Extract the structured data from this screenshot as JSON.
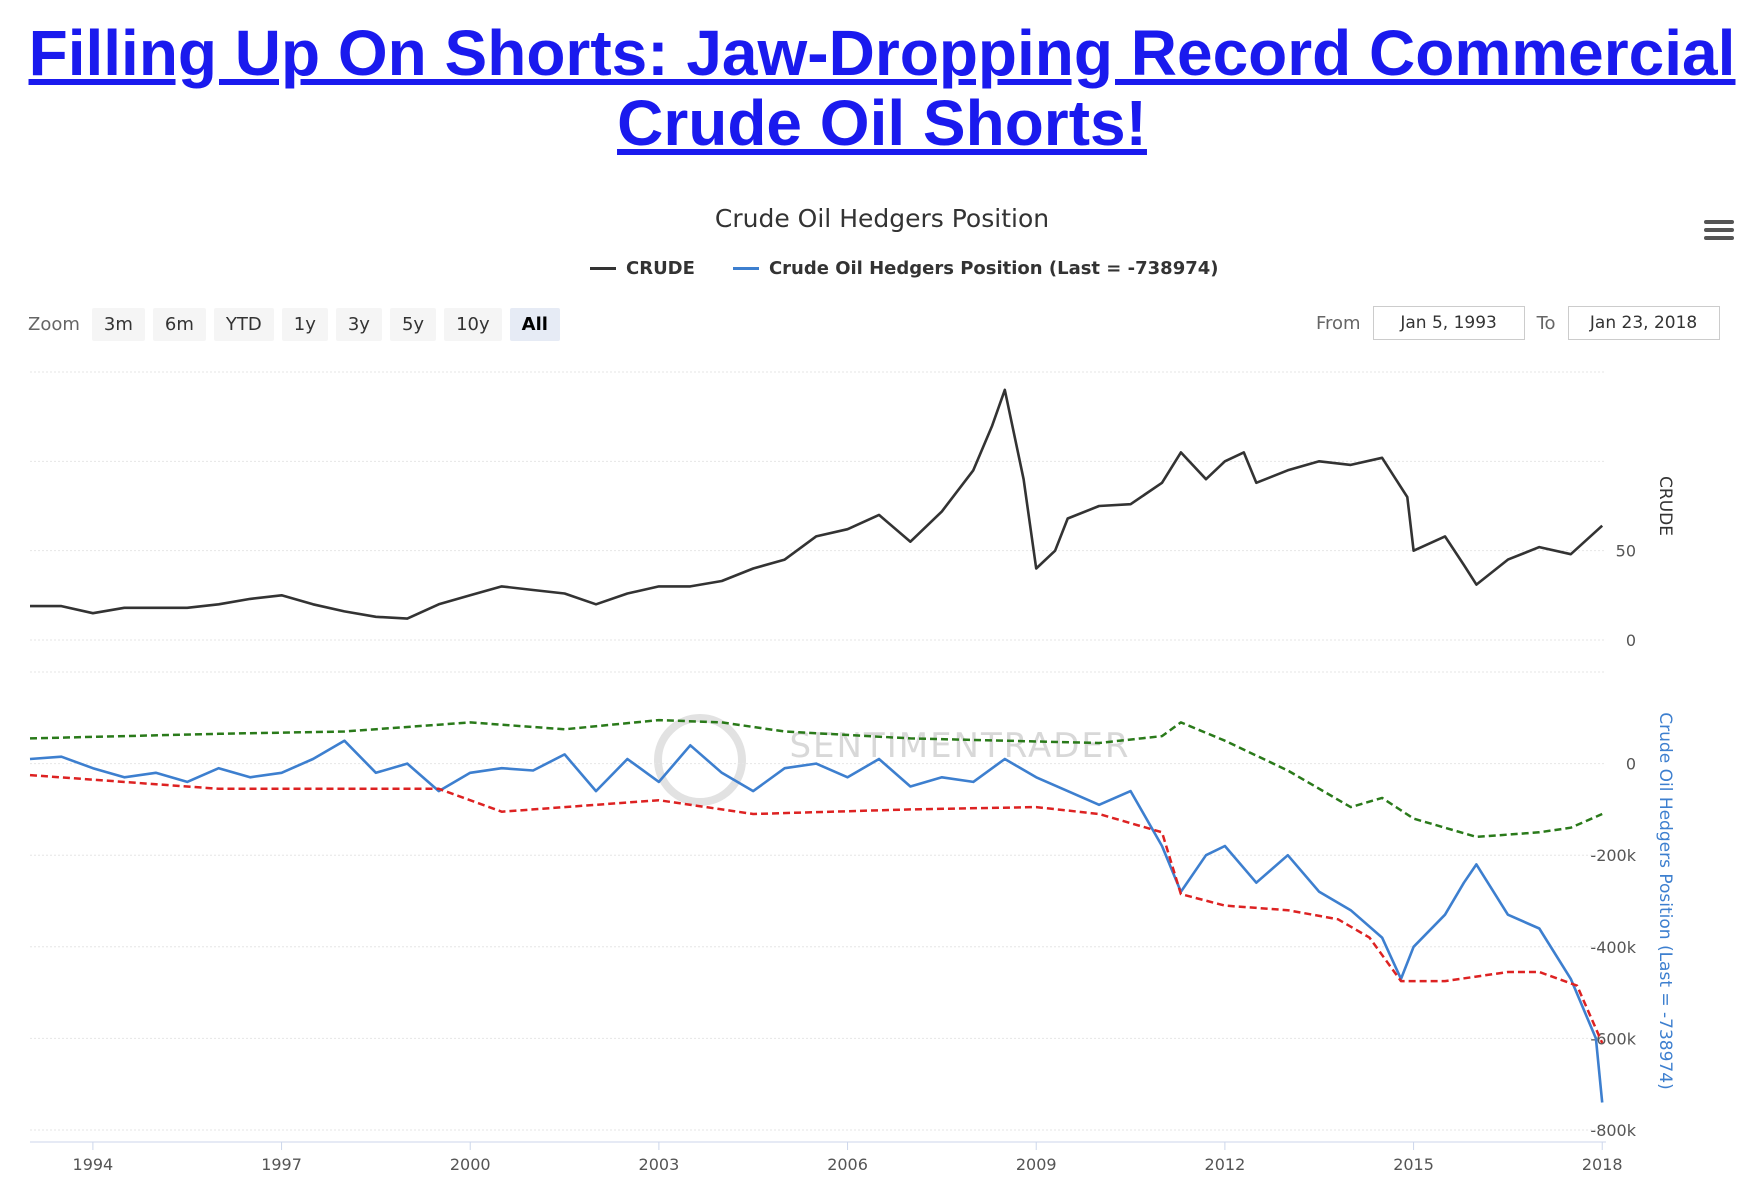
{
  "headline": "Filling Up On Shorts: Jaw-Dropping Record Commercial Crude Oil Shorts!",
  "toolbar": {
    "zoom_label": "Zoom",
    "zoom_buttons": [
      "3m",
      "6m",
      "YTD",
      "1y",
      "3y",
      "5y",
      "10y",
      "All"
    ],
    "active_zoom": "All",
    "from_label": "From",
    "from_value": "Jan 5, 1993",
    "to_label": "To",
    "to_value": "Jan 23, 2018"
  },
  "watermark": "SENTIMENTRADER",
  "colors": {
    "crude": "#333333",
    "hedgers": "#3d7fcf",
    "upper_band": "#2a7a1a",
    "lower_band": "#dd2222"
  },
  "chart_data": {
    "type": "line",
    "title": "Crude Oil Hedgers Position",
    "legend": [
      "CRUDE",
      "Crude Oil Hedgers Position (Last = -738974)"
    ],
    "x_ticks": [
      "1994",
      "1997",
      "2000",
      "2003",
      "2006",
      "2009",
      "2012",
      "2015",
      "2018"
    ],
    "xlim": [
      1993.0,
      2018.06
    ],
    "panels": [
      {
        "name": "CRUDE",
        "ylabel": "CRUDE",
        "ylim": [
          0,
          150
        ],
        "yticks": [
          0,
          50
        ],
        "series": [
          {
            "name": "CRUDE",
            "x": [
              1993.0,
              1993.5,
              1994.0,
              1994.5,
              1995.0,
              1995.5,
              1996.0,
              1996.5,
              1997.0,
              1997.5,
              1998.0,
              1998.5,
              1999.0,
              1999.5,
              2000.0,
              2000.5,
              2001.0,
              2001.5,
              2002.0,
              2002.5,
              2003.0,
              2003.5,
              2004.0,
              2004.5,
              2005.0,
              2005.5,
              2006.0,
              2006.5,
              2007.0,
              2007.5,
              2008.0,
              2008.3,
              2008.5,
              2008.8,
              2009.0,
              2009.3,
              2009.5,
              2010.0,
              2010.5,
              2011.0,
              2011.3,
              2011.7,
              2012.0,
              2012.3,
              2012.5,
              2013.0,
              2013.5,
              2014.0,
              2014.5,
              2014.9,
              2015.0,
              2015.5,
              2015.8,
              2016.0,
              2016.5,
              2017.0,
              2017.5,
              2018.0
            ],
            "values": [
              19,
              19,
              15,
              18,
              18,
              18,
              20,
              23,
              25,
              20,
              16,
              13,
              12,
              20,
              25,
              30,
              28,
              26,
              20,
              26,
              30,
              30,
              33,
              40,
              45,
              58,
              62,
              70,
              55,
              72,
              95,
              120,
              140,
              90,
              40,
              50,
              68,
              75,
              76,
              88,
              105,
              90,
              100,
              105,
              88,
              95,
              100,
              98,
              102,
              80,
              50,
              58,
              42,
              31,
              45,
              52,
              48,
              64
            ]
          }
        ]
      },
      {
        "name": "Crude Oil Hedgers Position",
        "ylabel": "Crude Oil Hedgers Position (Last = -738974)",
        "ylim": [
          -800000,
          200000
        ],
        "yticks": [
          0,
          -200000,
          -400000,
          -600000,
          -800000
        ],
        "ytick_labels": [
          "0",
          "-200k",
          "-400k",
          "-600k",
          "-800k"
        ],
        "last": -738974,
        "series": [
          {
            "name": "Crude Oil Hedgers Position",
            "x": [
              1993.0,
              1993.5,
              1994.0,
              1994.5,
              1995.0,
              1995.5,
              1996.0,
              1996.5,
              1997.0,
              1997.5,
              1998.0,
              1998.5,
              1999.0,
              1999.5,
              2000.0,
              2000.5,
              2001.0,
              2001.5,
              2002.0,
              2002.5,
              2003.0,
              2003.5,
              2004.0,
              2004.5,
              2005.0,
              2005.5,
              2006.0,
              2006.5,
              2007.0,
              2007.5,
              2008.0,
              2008.5,
              2009.0,
              2009.5,
              2010.0,
              2010.5,
              2011.0,
              2011.3,
              2011.7,
              2012.0,
              2012.5,
              2013.0,
              2013.5,
              2014.0,
              2014.5,
              2014.8,
              2015.0,
              2015.5,
              2015.8,
              2016.0,
              2016.5,
              2017.0,
              2017.5,
              2017.9,
              2018.0
            ],
            "values": [
              10000,
              15000,
              -10000,
              -30000,
              -20000,
              -40000,
              -10000,
              -30000,
              -20000,
              10000,
              50000,
              -20000,
              0,
              -60000,
              -20000,
              -10000,
              -15000,
              20000,
              -60000,
              10000,
              -40000,
              40000,
              -20000,
              -60000,
              -10000,
              0,
              -30000,
              10000,
              -50000,
              -30000,
              -40000,
              10000,
              -30000,
              -60000,
              -90000,
              -60000,
              -180000,
              -280000,
              -200000,
              -180000,
              -260000,
              -200000,
              -280000,
              -320000,
              -380000,
              -470000,
              -400000,
              -330000,
              -260000,
              -220000,
              -330000,
              -360000,
              -470000,
              -600000,
              -740000
            ]
          },
          {
            "name": "Upper band",
            "x": [
              1993.0,
              1996.0,
              1998.0,
              2000.0,
              2001.5,
              2003.0,
              2004.0,
              2005.0,
              2007.0,
              2008.5,
              2010.0,
              2011.0,
              2011.3,
              2012.0,
              2013.0,
              2014.0,
              2014.5,
              2015.0,
              2016.0,
              2017.0,
              2017.5,
              2018.0
            ],
            "values": [
              55000,
              65000,
              70000,
              90000,
              75000,
              95000,
              90000,
              70000,
              55000,
              50000,
              45000,
              60000,
              90000,
              50000,
              -15000,
              -95000,
              -75000,
              -120000,
              -160000,
              -150000,
              -140000,
              -110000
            ]
          },
          {
            "name": "Lower band",
            "x": [
              1993.0,
              1996.0,
              1998.0,
              1999.5,
              2000.5,
              2003.0,
              2004.5,
              2007.0,
              2009.0,
              2010.0,
              2011.0,
              2011.3,
              2012.0,
              2013.0,
              2013.8,
              2014.3,
              2014.8,
              2015.5,
              2016.5,
              2017.0,
              2017.6,
              2018.0
            ],
            "values": [
              -25000,
              -55000,
              -55000,
              -55000,
              -105000,
              -80000,
              -110000,
              -100000,
              -95000,
              -110000,
              -150000,
              -285000,
              -310000,
              -320000,
              -340000,
              -380000,
              -475000,
              -475000,
              -455000,
              -455000,
              -485000,
              -610000
            ]
          }
        ]
      }
    ]
  }
}
